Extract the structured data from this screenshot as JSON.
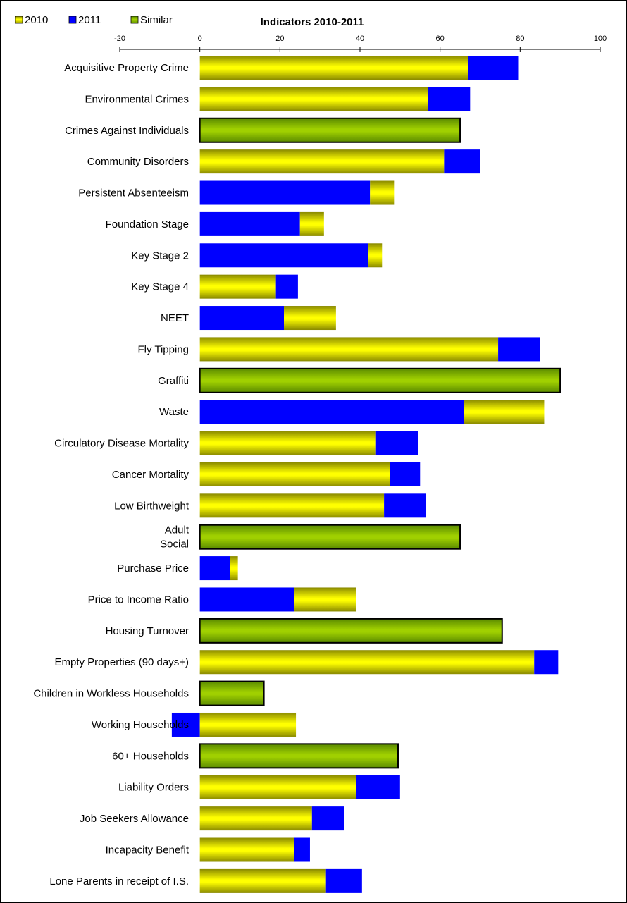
{
  "chart_data": {
    "type": "bar",
    "orientation": "horizontal",
    "title": "Indicators 2010-2011",
    "xlim": [
      -20,
      100
    ],
    "xticks": [
      "-20",
      "0",
      "20",
      "40",
      "60",
      "80",
      "100"
    ],
    "xaxis_position": "top",
    "grid": false,
    "legend_position": "top-left",
    "colors": {
      "2010": "#f0f000",
      "2011": "#0000f0",
      "Similar": "#7cb800"
    },
    "legend": [
      {
        "key": "2010",
        "label": "2010"
      },
      {
        "key": "2011",
        "label": "2011"
      },
      {
        "key": "Similar",
        "label": "Similar"
      }
    ],
    "categories": [
      {
        "label": "Acquisitive Property Crime",
        "v2010": 67,
        "v2011": 79.5
      },
      {
        "label": "Environmental Crimes",
        "v2010": 57,
        "v2011": 67.5
      },
      {
        "label": "Crimes Against Individuals",
        "similar": 65
      },
      {
        "label": "Community Disorders",
        "v2010": 61,
        "v2011": 70
      },
      {
        "label": "Persistent Absenteeism",
        "v2010": 48.5,
        "v2011": 42.5
      },
      {
        "label": "Foundation Stage",
        "v2010": 31,
        "v2011": 25
      },
      {
        "label": "Key Stage 2",
        "v2010": 45.5,
        "v2011": 42
      },
      {
        "label": "Key Stage 4",
        "v2010": 19,
        "v2011": 24.5
      },
      {
        "label": "NEET",
        "v2010": 34,
        "v2011": 21
      },
      {
        "label": "Fly Tipping",
        "v2010": 74.5,
        "v2011": 85
      },
      {
        "label": "Graffiti",
        "similar": 90
      },
      {
        "label": "Waste",
        "v2010": 86,
        "v2011": 66
      },
      {
        "label": "Circulatory Disease Mortality",
        "v2010": 44,
        "v2011": 54.5
      },
      {
        "label": "Cancer Mortality",
        "v2010": 47.5,
        "v2011": 55
      },
      {
        "label": "Low Birthweight",
        "v2010": 46,
        "v2011": 56.5
      },
      {
        "label": "Adult Social",
        "label_lines": [
          "Adult",
          "Social"
        ],
        "similar": 65
      },
      {
        "label": "Purchase Price",
        "v2010": 9.5,
        "v2011": 7.5
      },
      {
        "label": "Price to Income Ratio",
        "v2010": 39,
        "v2011": 23.5
      },
      {
        "label": "Housing Turnover",
        "similar": 75.5
      },
      {
        "label": "Empty Properties (90 days+)",
        "v2010": 83.5,
        "v2011": 89.5
      },
      {
        "label": "Children in Workless Households",
        "similar": 16
      },
      {
        "label": "Working Households",
        "v2010": 24,
        "v2011": -7
      },
      {
        "label": "60+ Households",
        "similar": 49.5
      },
      {
        "label": "Liability Orders",
        "v2010": 39,
        "v2011": 50
      },
      {
        "label": "Job Seekers Allowance",
        "v2010": 28,
        "v2011": 36
      },
      {
        "label": "Incapacity Benefit",
        "v2010": 23.5,
        "v2011": 27.5
      },
      {
        "label": "Lone Parents in receipt of I.S.",
        "v2010": 31.5,
        "v2011": 40.5
      }
    ]
  }
}
